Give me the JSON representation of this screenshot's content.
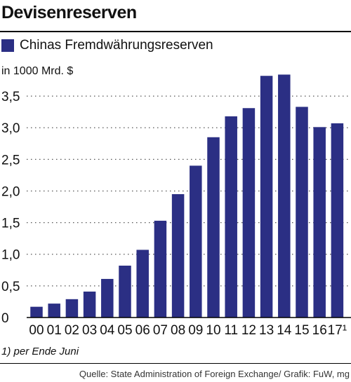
{
  "header": {
    "title": "Devisenreserven"
  },
  "legend": {
    "label": "Chinas Fremdwährungsreserven",
    "color": "#2b2f84"
  },
  "chart_data": {
    "type": "bar",
    "title": "Devisenreserven",
    "ylabel": "in 1000 Mrd. $",
    "xlabel": "",
    "categories": [
      "00",
      "01",
      "02",
      "03",
      "04",
      "05",
      "06",
      "07",
      "08",
      "09",
      "10",
      "11",
      "12",
      "13",
      "14",
      "15",
      "16",
      "17¹"
    ],
    "series": [
      {
        "name": "Chinas Fremdwährungsreserven",
        "values": [
          0.17,
          0.22,
          0.29,
          0.41,
          0.61,
          0.82,
          1.07,
          1.53,
          1.95,
          2.4,
          2.85,
          3.18,
          3.31,
          3.82,
          3.84,
          3.33,
          3.01,
          3.07
        ]
      }
    ],
    "ylim": [
      0,
      3.9
    ],
    "yticks": [
      "0",
      "0,5",
      "1,0",
      "1,5",
      "2,0",
      "2,5",
      "3,0",
      "3,5"
    ],
    "grid": "horizontal dotted",
    "bar_color": "#2b2f84"
  },
  "footnote": "1) per Ende Juni",
  "source": "Quelle: State Administration of Foreign Exchange/ Grafik: FuW, mg"
}
